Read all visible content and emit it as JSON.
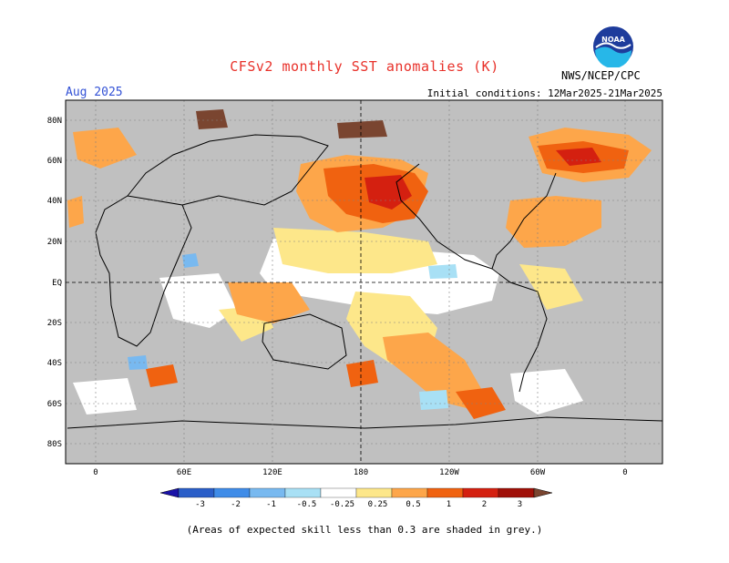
{
  "header": {
    "title": "CFSv2 monthly SST anomalies (K)",
    "month": "Aug 2025",
    "initial_conditions": "Initial conditions: 12Mar2025-21Mar2025",
    "agency": "NWS/NCEP/CPC",
    "logo_text": "NOAA"
  },
  "axes": {
    "lat_labels": [
      "80N",
      "60N",
      "40N",
      "20N",
      "EQ",
      "20S",
      "40S",
      "60S",
      "80S"
    ],
    "lon_labels": [
      "0",
      "60E",
      "120E",
      "180",
      "120W",
      "60W",
      "0"
    ]
  },
  "legend": {
    "labels": [
      "-3",
      "-2",
      "-1",
      "-0.5",
      "-0.25",
      "0.25",
      "0.5",
      "1",
      "2",
      "3"
    ],
    "colors": [
      "#1a12a8",
      "#2a5ec8",
      "#3f8ce8",
      "#78b9f0",
      "#a8e0f5",
      "#ffffff",
      "#fde78a",
      "#fda64a",
      "#f06210",
      "#d42010",
      "#a01008",
      "#7a4530"
    ]
  },
  "colors": {
    "grey_mask": "#c0c0c0",
    "ocean_white": "#ffffff"
  },
  "footnote": "(Areas of expected skill less than 0.3 are shaded in grey.)"
}
